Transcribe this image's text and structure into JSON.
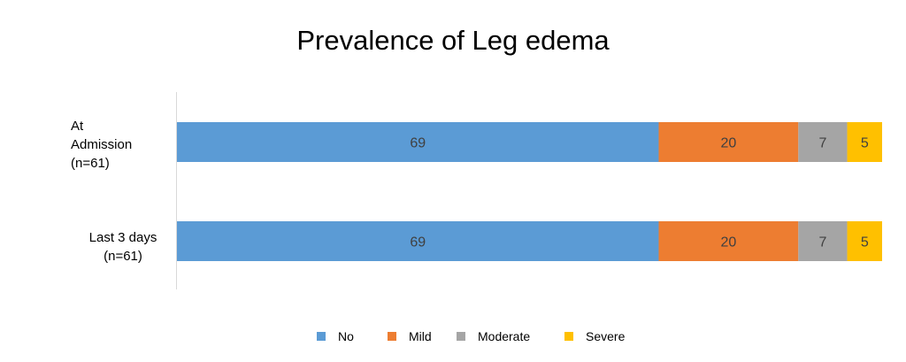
{
  "chart_data": {
    "type": "bar",
    "orientation": "horizontal",
    "stacked": true,
    "title": "Prevalence of Leg edema",
    "categories": [
      "At\nAdmission\n(n=61)",
      "Last 3 days\n(n=61)"
    ],
    "series": [
      {
        "name": "No",
        "values": [
          69,
          69
        ],
        "color": "#5B9BD5"
      },
      {
        "name": "Mild",
        "values": [
          20,
          20
        ],
        "color": "#ED7D31"
      },
      {
        "name": "Moderate",
        "values": [
          7,
          7
        ],
        "color": "#A5A5A5"
      },
      {
        "name": "Severe",
        "values": [
          5,
          5
        ],
        "color": "#FFC000"
      }
    ],
    "legend_position": "bottom",
    "grid": false,
    "data_labels": true
  }
}
